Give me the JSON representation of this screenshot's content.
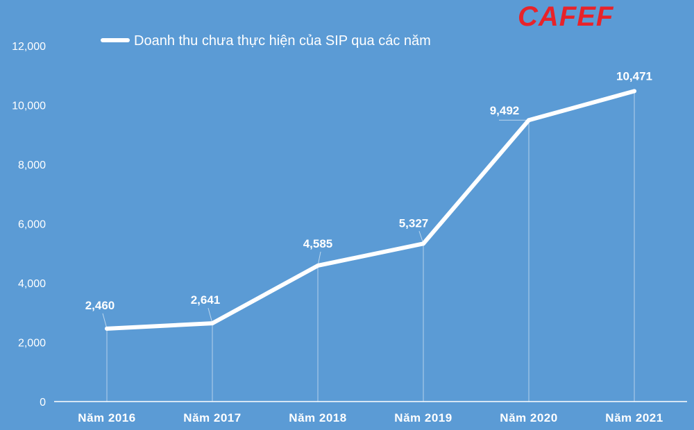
{
  "logo": {
    "text": "CAFEF",
    "color": "#e8232a"
  },
  "chart_data": {
    "type": "line",
    "categories": [
      "Năm 2016",
      "Năm 2017",
      "Năm 2018",
      "Năm 2019",
      "Năm 2020",
      "Năm 2021"
    ],
    "series": [
      {
        "name": "Doanh thu chưa thực hiện của SIP qua các năm",
        "values": [
          2460,
          2641,
          4585,
          5327,
          9492,
          10471
        ],
        "labels": [
          "2,460",
          "2,641",
          "4,585",
          "5,327",
          "9,492",
          "10,471"
        ],
        "color": "#ffffff"
      }
    ],
    "y_ticks": [
      "0",
      "2,000",
      "4,000",
      "6,000",
      "8,000",
      "10,000",
      "12,000"
    ],
    "ylim": [
      0,
      12000
    ],
    "legend_position": "top",
    "grid": false,
    "background": "#5b9bd5"
  }
}
